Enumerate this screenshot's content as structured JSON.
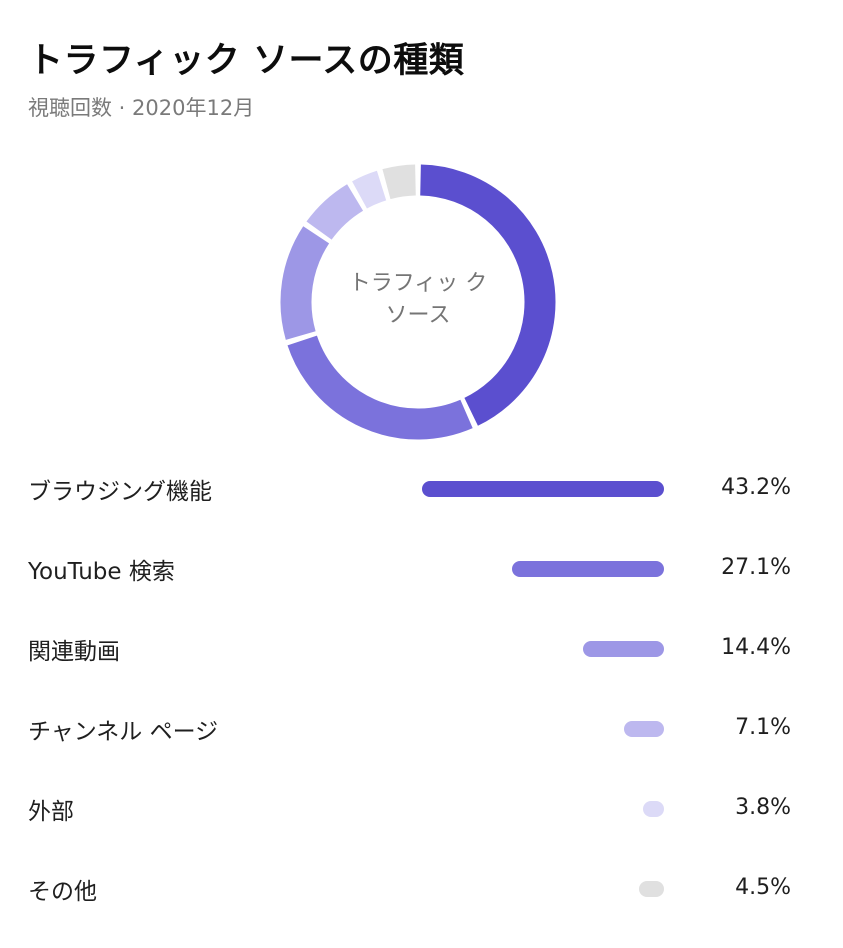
{
  "title": "トラフィック ソースの種類",
  "subtitle": "視聴回数 · 2020年12月",
  "center_label": "トラフィッ ク ソース",
  "chart_data": {
    "type": "pie",
    "title": "トラフィック ソースの種類",
    "subtitle": "視聴回数 · 2020年12月",
    "categories": [
      "ブラウジング機能",
      "YouTube 検索",
      "関連動画",
      "チャンネル ページ",
      "外部",
      "その他"
    ],
    "values": [
      43.2,
      27.1,
      14.4,
      7.1,
      3.8,
      4.5
    ],
    "value_labels": [
      "43.2%",
      "27.1%",
      "14.4%",
      "7.1%",
      "3.8%",
      "4.5%"
    ],
    "colors": [
      "#5b4fcf",
      "#7b72dc",
      "#9d97e6",
      "#bdb8ef",
      "#dcdaf7",
      "#e0e0e0"
    ],
    "bar_max": 43.2
  }
}
